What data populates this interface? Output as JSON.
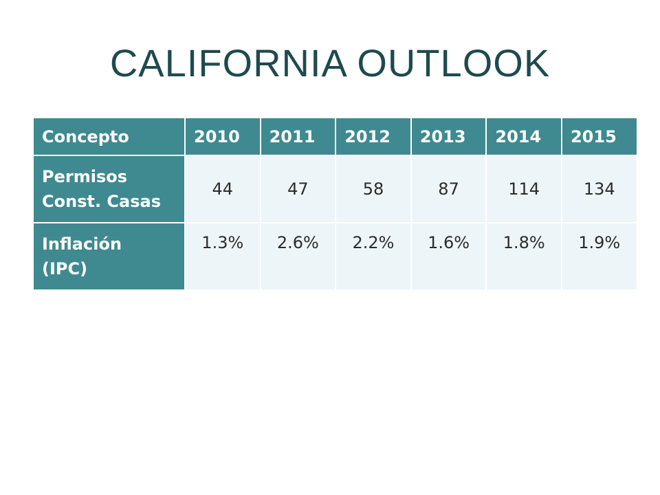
{
  "title": "CALIFORNIA OUTLOOK",
  "table": {
    "headers": [
      "Concepto",
      "2010",
      "2011",
      "2012",
      "2013",
      "2014",
      "2015"
    ],
    "rows": [
      {
        "label_line1": "Permisos",
        "label_line2": "Const. Casas",
        "values": [
          "44",
          "47",
          "58",
          "87",
          "114",
          "134"
        ]
      },
      {
        "label_line1": "Inflación",
        "label_line2": "(IPC)",
        "values": [
          "1.3%",
          "2.6%",
          "2.2%",
          "1.6%",
          "1.8%",
          "1.9%"
        ]
      }
    ]
  },
  "colors": {
    "title": "#1f4a4e",
    "header_bg": "#3e8a90",
    "cell_bg": "#eef5f8"
  }
}
